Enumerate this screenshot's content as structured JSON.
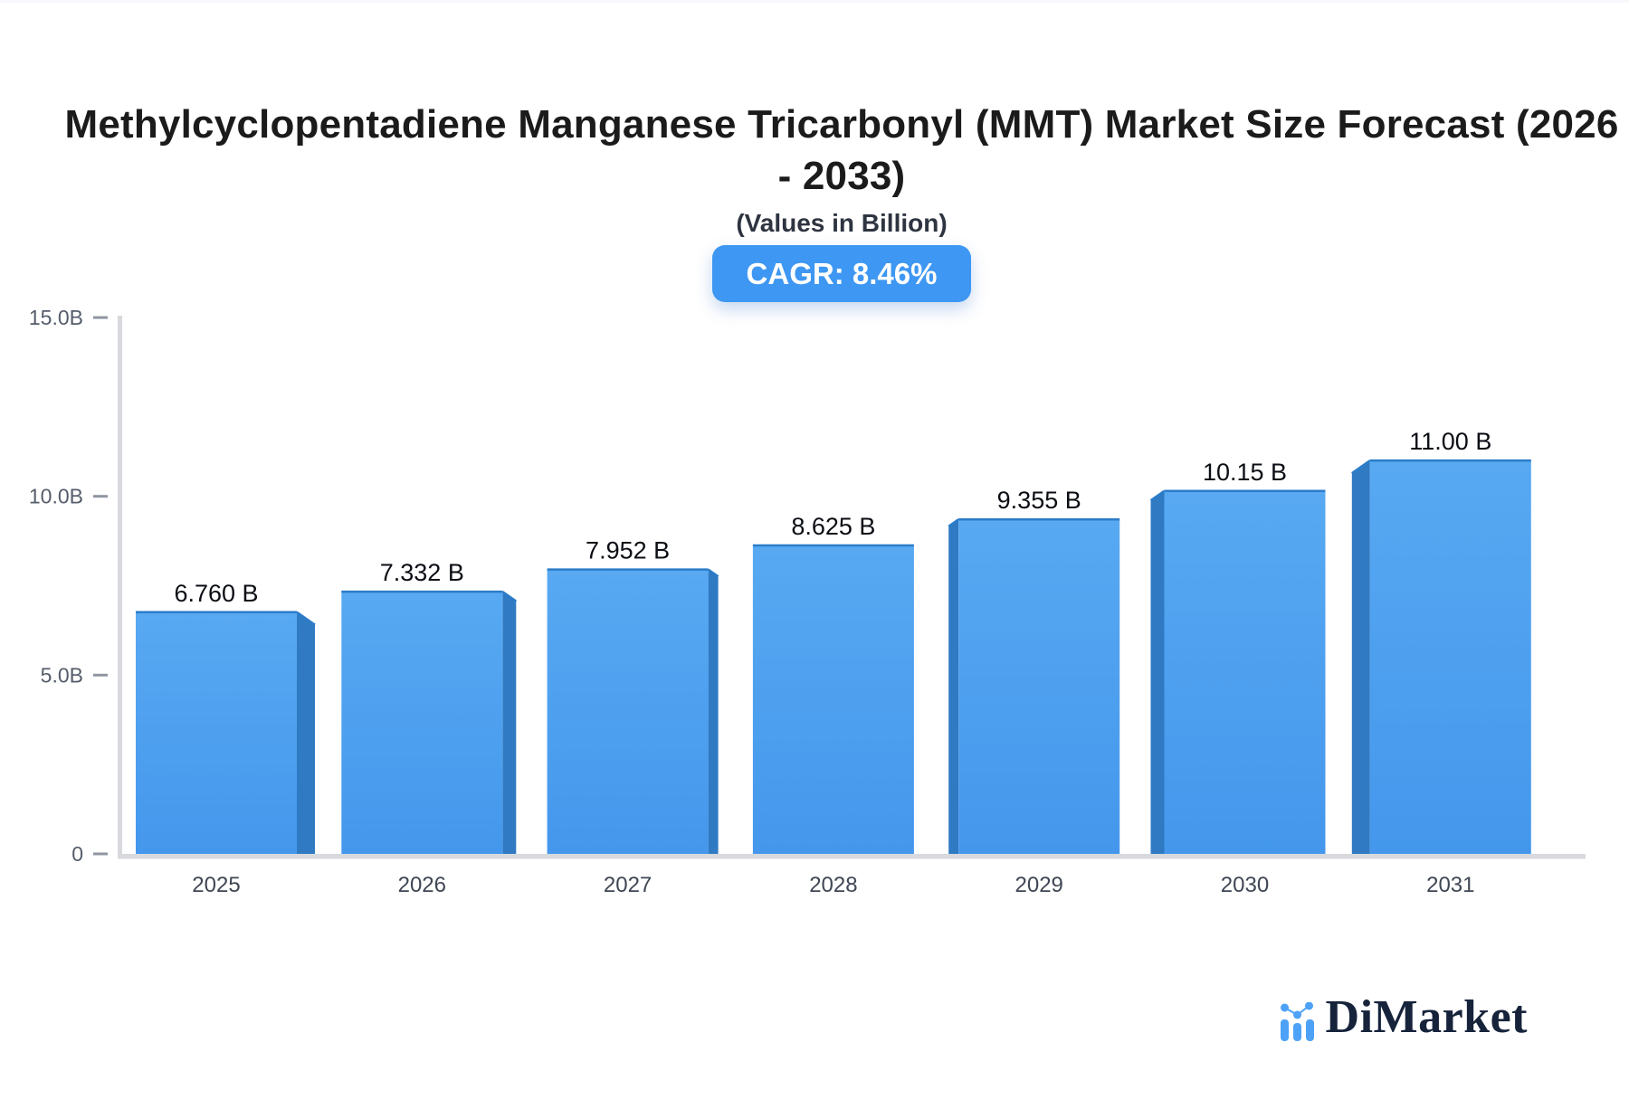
{
  "header": {
    "title_line1": "Methylcyclopentadiene Manganese Tricarbonyl (MMT) Market Size Forecast (2026",
    "title_line2": "- 2033)",
    "subtitle": "(Values in Billion)",
    "cagr_badge": "CAGR: 8.46%",
    "badge_color": "#3E97F2"
  },
  "chart_data": {
    "type": "bar",
    "title": "Methylcyclopentadiene Manganese Tricarbonyl (MMT) Market Size Forecast (2026 - 2033)",
    "subtitle": "(Values in Billion)",
    "categories": [
      "2025",
      "2026",
      "2027",
      "2028",
      "2029",
      "2030",
      "2031"
    ],
    "values": [
      6.76,
      7.332,
      7.952,
      8.625,
      9.355,
      10.15,
      11.0
    ],
    "value_labels": [
      "6.760 B",
      "7.332 B",
      "7.952 B",
      "8.625 B",
      "9.355 B",
      "10.15 B",
      "11.00 B"
    ],
    "ylim": [
      0,
      15
    ],
    "y_ticks": [
      {
        "value": 0,
        "label": "0"
      },
      {
        "value": 5,
        "label": "5.0B"
      },
      {
        "value": 10,
        "label": "10.0B"
      },
      {
        "value": 15,
        "label": "15.0B"
      }
    ],
    "grid": false,
    "legend": false,
    "colors": {
      "bar_top": "#58A9F2",
      "bar_bottom": "#4497EC",
      "bar_side": "#2F7AC2",
      "bar_edge": "#2B7CC9",
      "axis": "#D7D9DD",
      "tick_dash": "#8F96A1",
      "tick_label": "#555D6B",
      "category_label": "#3F4654",
      "value_label": "#0B0E14"
    }
  },
  "logo": {
    "text": "DiMarket",
    "text_color": "#16233B",
    "icon": "bar-chart-logo-icon",
    "icon_color": "#4DA2F8"
  }
}
